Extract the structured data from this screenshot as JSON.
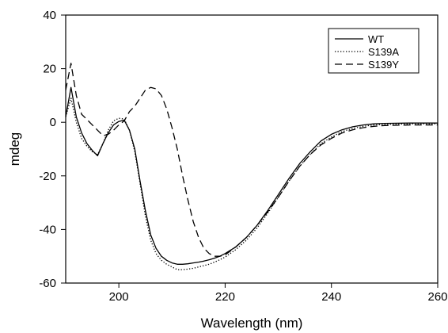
{
  "chart_data": {
    "type": "line",
    "xlabel": "Wavelength (nm)",
    "ylabel": "mdeg",
    "xlim": [
      190,
      260
    ],
    "ylim": [
      -60,
      40
    ],
    "x_ticks": [
      200,
      220,
      240,
      260
    ],
    "y_ticks": [
      -60,
      -40,
      -20,
      0,
      20,
      40
    ],
    "grid": false,
    "legend_position": "top-right",
    "series": [
      {
        "name": "WT",
        "style": "solid",
        "points": [
          [
            190,
            2
          ],
          [
            191,
            13
          ],
          [
            192,
            2
          ],
          [
            193,
            -4
          ],
          [
            194,
            -8
          ],
          [
            195,
            -10.5
          ],
          [
            196,
            -12.5
          ],
          [
            197,
            -8
          ],
          [
            198,
            -4
          ],
          [
            199,
            -1
          ],
          [
            200,
            0.3
          ],
          [
            201,
            0.8
          ],
          [
            202,
            -3
          ],
          [
            203,
            -10
          ],
          [
            204,
            -22
          ],
          [
            205,
            -33
          ],
          [
            206,
            -42
          ],
          [
            207,
            -47
          ],
          [
            208,
            -50
          ],
          [
            209,
            -51.5
          ],
          [
            210,
            -52.5
          ],
          [
            211,
            -53
          ],
          [
            212,
            -53
          ],
          [
            213,
            -52.8
          ],
          [
            214,
            -52.5
          ],
          [
            215,
            -52.2
          ],
          [
            216,
            -51.8
          ],
          [
            217,
            -51.3
          ],
          [
            218,
            -50.7
          ],
          [
            219,
            -50
          ],
          [
            220,
            -49
          ],
          [
            222,
            -46.5
          ],
          [
            224,
            -43
          ],
          [
            226,
            -38.5
          ],
          [
            228,
            -33
          ],
          [
            230,
            -27
          ],
          [
            232,
            -21
          ],
          [
            234,
            -15.5
          ],
          [
            236,
            -11
          ],
          [
            238,
            -7
          ],
          [
            240,
            -4.5
          ],
          [
            242,
            -2.8
          ],
          [
            244,
            -1.7
          ],
          [
            246,
            -1
          ],
          [
            248,
            -0.6
          ],
          [
            250,
            -0.4
          ],
          [
            255,
            -0.3
          ],
          [
            260,
            -0.3
          ]
        ]
      },
      {
        "name": "S139A",
        "style": "dotted",
        "points": [
          [
            190,
            2
          ],
          [
            191,
            9
          ],
          [
            192,
            0
          ],
          [
            193,
            -6
          ],
          [
            194,
            -9
          ],
          [
            195,
            -11
          ],
          [
            196,
            -12
          ],
          [
            197,
            -8
          ],
          [
            198,
            -3
          ],
          [
            199,
            0.5
          ],
          [
            200,
            1.5
          ],
          [
            201,
            1.2
          ],
          [
            202,
            -3
          ],
          [
            203,
            -11
          ],
          [
            204,
            -23
          ],
          [
            205,
            -35
          ],
          [
            206,
            -44
          ],
          [
            207,
            -49
          ],
          [
            208,
            -51.5
          ],
          [
            209,
            -53
          ],
          [
            210,
            -54
          ],
          [
            211,
            -55
          ],
          [
            212,
            -55
          ],
          [
            213,
            -54.8
          ],
          [
            214,
            -54.5
          ],
          [
            215,
            -54
          ],
          [
            216,
            -53.5
          ],
          [
            217,
            -53
          ],
          [
            218,
            -52.2
          ],
          [
            219,
            -51.3
          ],
          [
            220,
            -50.3
          ],
          [
            222,
            -47.5
          ],
          [
            224,
            -44
          ],
          [
            226,
            -39.5
          ],
          [
            228,
            -34
          ],
          [
            230,
            -28
          ],
          [
            232,
            -22
          ],
          [
            234,
            -16.5
          ],
          [
            236,
            -12
          ],
          [
            238,
            -8
          ],
          [
            240,
            -5.5
          ],
          [
            242,
            -3.5
          ],
          [
            244,
            -2.3
          ],
          [
            246,
            -1.5
          ],
          [
            248,
            -1
          ],
          [
            250,
            -0.8
          ],
          [
            255,
            -0.6
          ],
          [
            260,
            -0.6
          ]
        ]
      },
      {
        "name": "S139Y",
        "style": "dashed",
        "points": [
          [
            190,
            12
          ],
          [
            191,
            22
          ],
          [
            192,
            10
          ],
          [
            193,
            3
          ],
          [
            194,
            1
          ],
          [
            195,
            -1
          ],
          [
            196,
            -3
          ],
          [
            197,
            -5
          ],
          [
            198,
            -4.5
          ],
          [
            199,
            -3
          ],
          [
            200,
            -1
          ],
          [
            201,
            0.5
          ],
          [
            202,
            4
          ],
          [
            203,
            6
          ],
          [
            204,
            9
          ],
          [
            205,
            12
          ],
          [
            206,
            13
          ],
          [
            207,
            12.5
          ],
          [
            208,
            10
          ],
          [
            209,
            5
          ],
          [
            210,
            -2
          ],
          [
            211,
            -10
          ],
          [
            212,
            -20
          ],
          [
            213,
            -29
          ],
          [
            214,
            -37
          ],
          [
            215,
            -43
          ],
          [
            216,
            -47
          ],
          [
            217,
            -49
          ],
          [
            218,
            -50
          ],
          [
            219,
            -50
          ],
          [
            220,
            -49.5
          ],
          [
            222,
            -46.5
          ],
          [
            224,
            -43
          ],
          [
            226,
            -38.5
          ],
          [
            228,
            -33.5
          ],
          [
            230,
            -28
          ],
          [
            232,
            -22
          ],
          [
            234,
            -16.5
          ],
          [
            236,
            -12
          ],
          [
            238,
            -8.5
          ],
          [
            240,
            -6
          ],
          [
            242,
            -4
          ],
          [
            244,
            -2.8
          ],
          [
            246,
            -2
          ],
          [
            248,
            -1.5
          ],
          [
            250,
            -1.2
          ],
          [
            255,
            -1
          ],
          [
            260,
            -1
          ]
        ]
      }
    ]
  }
}
